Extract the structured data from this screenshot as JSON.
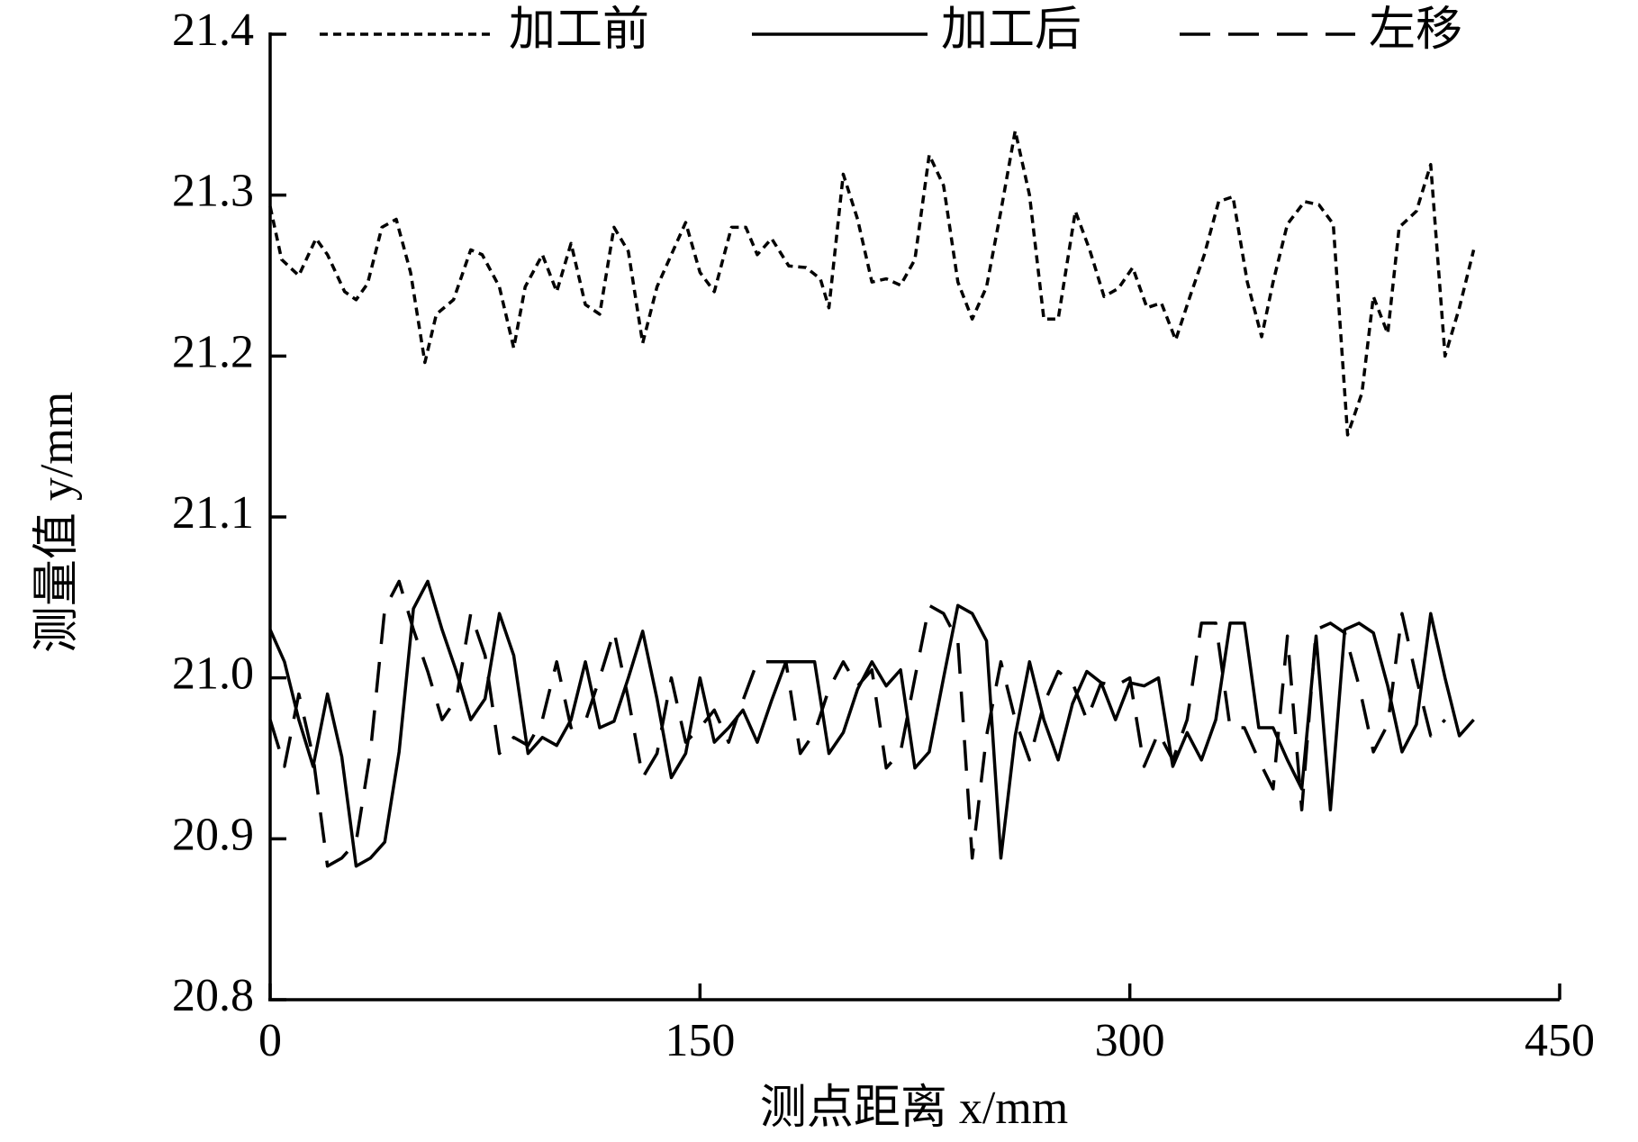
{
  "chart_data": {
    "type": "line",
    "xlabel": "测点距离 x/mm",
    "ylabel": "测量值 y/mm",
    "xlim": [
      0,
      450
    ],
    "xticks": [
      0,
      150,
      300,
      450
    ],
    "ylim": [
      20.8,
      21.4
    ],
    "yticks": [
      20.8,
      20.9,
      {
        "value": 21,
        "label": "21.0"
      },
      21.1,
      21.2,
      21.3,
      21.4
    ],
    "legend": "top",
    "series": [
      {
        "name": "加工前",
        "color": "#000000",
        "dash": "9,6",
        "x": [
          0,
          4,
          10,
          16,
          20,
          26,
          30,
          34,
          39,
          44,
          49,
          54,
          58,
          64,
          70,
          74,
          80,
          85,
          89,
          95,
          100,
          105,
          110,
          115,
          120,
          125,
          130,
          135,
          145,
          150,
          155,
          161,
          166,
          170,
          175,
          181,
          187,
          192,
          195,
          200,
          205,
          210,
          215,
          220,
          225,
          230,
          235,
          240,
          245,
          250,
          255,
          260,
          265,
          270,
          275,
          281,
          286,
          291,
          296,
          301,
          306,
          311,
          316,
          321,
          326,
          331,
          336,
          341,
          346,
          350,
          355,
          361,
          366,
          371,
          376,
          381,
          385,
          390,
          394,
          400,
          405,
          410,
          415,
          420
        ],
        "values": [
          21.293,
          21.26,
          21.25,
          21.273,
          21.263,
          21.24,
          21.235,
          21.245,
          21.28,
          21.285,
          21.252,
          21.196,
          21.226,
          21.235,
          21.266,
          21.263,
          21.243,
          21.205,
          21.243,
          21.263,
          21.24,
          21.27,
          21.232,
          21.226,
          21.28,
          21.265,
          21.208,
          21.243,
          21.283,
          21.252,
          21.24,
          21.28,
          21.28,
          21.263,
          21.273,
          21.256,
          21.255,
          21.248,
          21.23,
          21.313,
          21.285,
          21.246,
          21.248,
          21.244,
          21.26,
          21.325,
          21.306,
          21.246,
          21.223,
          21.243,
          21.29,
          21.34,
          21.3,
          21.223,
          21.223,
          21.29,
          21.266,
          21.237,
          21.242,
          21.255,
          21.23,
          21.233,
          21.21,
          21.237,
          21.263,
          21.296,
          21.299,
          21.246,
          21.212,
          21.246,
          21.282,
          21.296,
          21.294,
          21.282,
          21.151,
          21.177,
          21.237,
          21.214,
          21.28,
          21.29,
          21.319,
          21.2,
          21.23,
          21.266
        ]
      },
      {
        "name": "加工后",
        "color": "#000000",
        "dash": "none",
        "x": [
          0,
          5,
          10,
          15,
          20,
          25,
          30,
          35,
          40,
          45,
          50,
          55,
          60,
          65,
          70,
          75,
          80,
          85,
          90,
          95,
          100,
          105,
          110,
          115,
          120,
          125,
          130,
          135,
          140,
          145,
          150,
          155,
          160,
          165,
          170,
          175,
          180,
          185,
          190,
          195,
          200,
          205,
          210,
          215,
          220,
          225,
          230,
          235,
          240,
          245,
          250,
          255,
          260,
          265,
          270,
          275,
          280,
          285,
          290,
          295,
          300,
          305,
          310,
          315,
          320,
          325,
          330,
          335,
          340,
          345,
          350,
          355,
          360,
          365,
          370,
          375,
          380,
          385,
          390,
          395,
          400,
          405,
          410,
          415,
          420
        ],
        "values": [
          21.03,
          21.01,
          20.974,
          20.945,
          20.99,
          20.951,
          20.883,
          20.888,
          20.898,
          20.954,
          21.043,
          21.06,
          21.03,
          21.004,
          20.974,
          20.987,
          21.04,
          21.014,
          20.953,
          20.963,
          20.958,
          20.974,
          21.01,
          20.969,
          20.973,
          21.0,
          21.029,
          20.987,
          20.938,
          20.953,
          21.0,
          20.96,
          20.969,
          20.98,
          20.96,
          20.986,
          21.01,
          21.01,
          21.01,
          20.953,
          20.966,
          20.993,
          21.01,
          20.995,
          21.005,
          20.944,
          20.954,
          21.0,
          21.045,
          21.04,
          21.023,
          20.888,
          20.964,
          21.01,
          20.974,
          20.949,
          20.984,
          21.004,
          20.997,
          20.974,
          20.997,
          20.995,
          21.0,
          20.945,
          20.966,
          20.949,
          20.974,
          21.034,
          21.034,
          20.969,
          20.969,
          20.949,
          20.931,
          21.026,
          20.918,
          21.03,
          21.034,
          21.028,
          20.995,
          20.954,
          20.971,
          21.04,
          21.0,
          20.964,
          20.974
        ]
      },
      {
        "name": "左移",
        "color": "#000000",
        "dash": "34,20",
        "x": [
          0,
          5,
          10,
          15,
          20,
          25,
          30,
          35,
          40,
          45,
          50,
          55,
          60,
          65,
          70,
          75,
          80,
          85,
          90,
          95,
          100,
          105,
          110,
          115,
          120,
          125,
          130,
          135,
          140,
          145,
          150,
          155,
          160,
          165,
          170,
          175,
          180,
          185,
          190,
          195,
          200,
          205,
          210,
          215,
          220,
          225,
          230,
          235,
          240,
          245,
          250,
          255,
          260,
          265,
          270,
          275,
          280,
          285,
          290,
          295,
          300,
          305,
          310,
          315,
          320,
          325,
          330,
          335,
          340,
          345,
          350,
          355,
          360,
          365,
          370,
          375,
          380,
          385,
          390,
          395,
          400,
          405,
          410
        ],
        "values": [
          20.974,
          20.945,
          20.99,
          20.951,
          20.883,
          20.888,
          20.898,
          20.954,
          21.043,
          21.06,
          21.03,
          21.004,
          20.974,
          20.987,
          21.04,
          21.014,
          20.953,
          20.963,
          20.958,
          20.974,
          21.01,
          20.969,
          20.973,
          21.0,
          21.029,
          20.987,
          20.938,
          20.953,
          21.0,
          20.96,
          20.969,
          20.98,
          20.96,
          20.986,
          21.01,
          21.01,
          21.01,
          20.953,
          20.966,
          20.993,
          21.01,
          20.995,
          21.005,
          20.944,
          20.954,
          21.0,
          21.045,
          21.04,
          21.023,
          20.888,
          20.964,
          21.01,
          20.974,
          20.949,
          20.984,
          21.004,
          20.997,
          20.974,
          20.997,
          20.995,
          21.0,
          20.945,
          20.966,
          20.949,
          20.974,
          21.034,
          21.034,
          20.969,
          20.969,
          20.949,
          20.931,
          21.026,
          20.918,
          21.03,
          21.034,
          21.028,
          20.995,
          20.954,
          20.971,
          21.04,
          21.0,
          20.964,
          20.974
        ]
      }
    ]
  }
}
